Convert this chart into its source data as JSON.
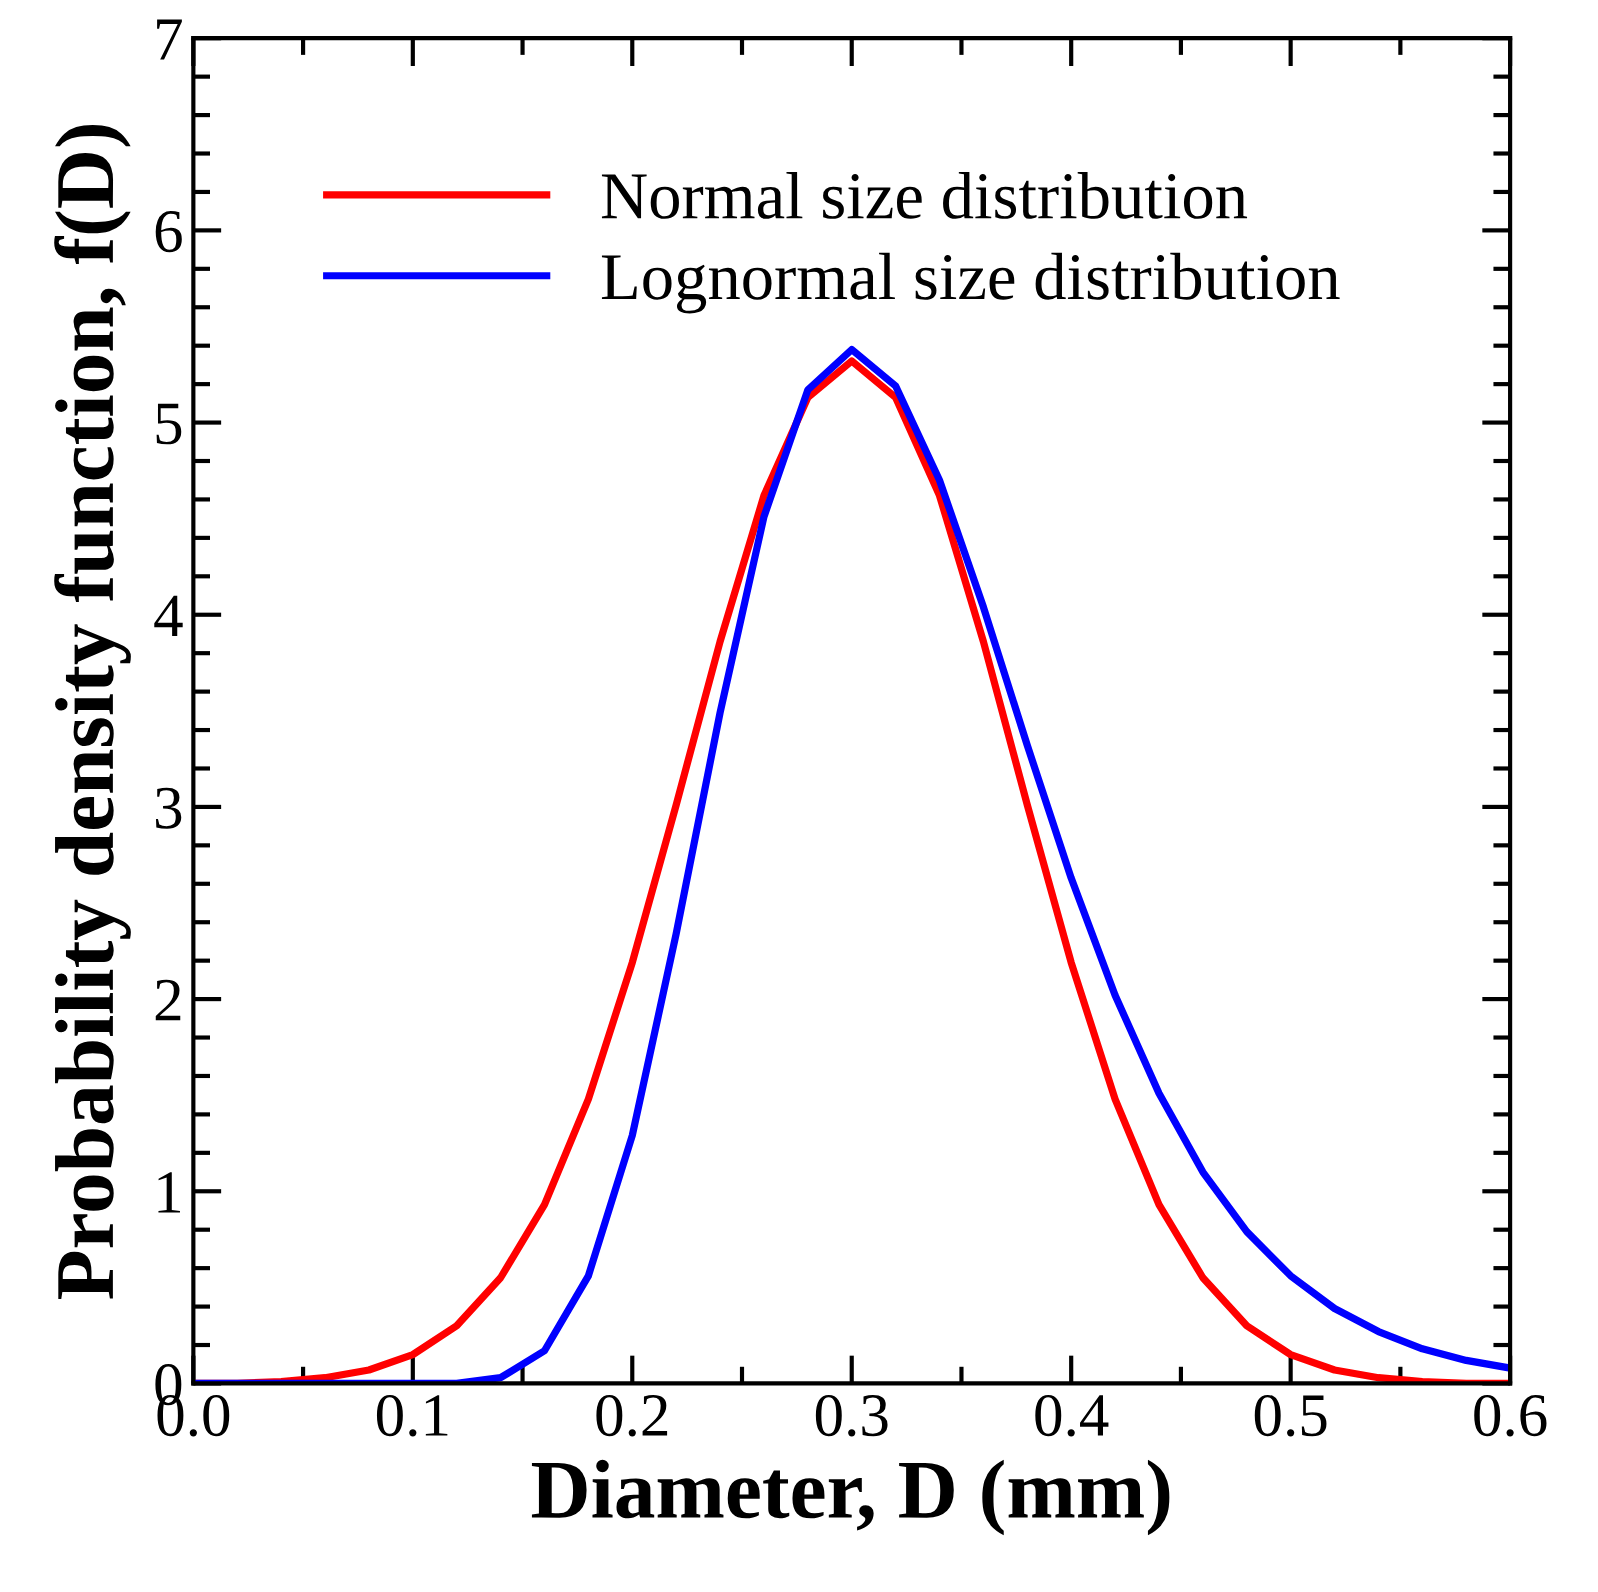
{
  "chart_data": {
    "type": "line",
    "xlabel": "Diameter, D (mm)",
    "ylabel": "Probability density function, f(D)",
    "x": [
      0.0,
      0.02,
      0.04,
      0.06,
      0.08,
      0.1,
      0.12,
      0.14,
      0.16,
      0.18,
      0.2,
      0.22,
      0.24,
      0.26,
      0.28,
      0.3,
      0.32,
      0.34,
      0.36,
      0.38,
      0.4,
      0.42,
      0.44,
      0.46,
      0.48,
      0.5,
      0.52,
      0.54,
      0.56,
      0.58,
      0.6
    ],
    "series": [
      {
        "name": "Normal size distribution",
        "color": "#ff0000",
        "values": [
          0.0,
          0.0,
          0.01,
          0.03,
          0.07,
          0.15,
          0.3,
          0.55,
          0.93,
          1.48,
          2.19,
          3.01,
          3.86,
          4.62,
          5.13,
          5.32,
          5.13,
          4.62,
          3.86,
          3.01,
          2.19,
          1.48,
          0.93,
          0.55,
          0.3,
          0.15,
          0.07,
          0.03,
          0.01,
          0.0,
          0.0
        ]
      },
      {
        "name": "Lognormal size distribution",
        "color": "#0000ff",
        "values": [
          0.0,
          0.0,
          0.0,
          0.0,
          0.0,
          0.0,
          0.0,
          0.03,
          0.17,
          0.56,
          1.29,
          2.34,
          3.49,
          4.51,
          5.17,
          5.38,
          5.19,
          4.7,
          4.04,
          3.32,
          2.63,
          2.02,
          1.51,
          1.1,
          0.79,
          0.56,
          0.39,
          0.27,
          0.18,
          0.12,
          0.08
        ]
      }
    ],
    "xlim": [
      0.0,
      0.6
    ],
    "xticks": [
      {
        "value": 0.0,
        "label": "0.0"
      },
      0.1,
      0.2,
      0.3,
      0.4,
      0.5,
      0.6
    ],
    "ylim": [
      0,
      7
    ],
    "yticks": [
      0,
      1,
      2,
      3,
      4,
      5,
      6,
      7
    ],
    "legend": "top left",
    "grid": false,
    "marker": "none",
    "line_style": "solid"
  }
}
